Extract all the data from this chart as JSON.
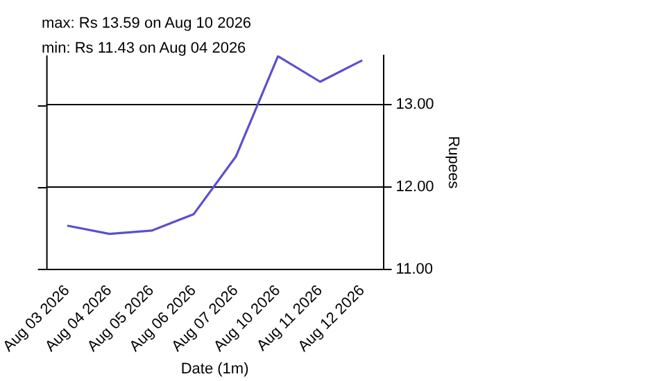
{
  "chart_data": {
    "type": "line",
    "xlabel": "Date (1m)",
    "ylabel": "Rupees",
    "annotations": [
      "max: Rs 13.59 on Aug 10 2026",
      "min: Rs 11.43 on Aug 04 2026"
    ],
    "categories": [
      "Aug 03 2026",
      "Aug 04 2026",
      "Aug 05 2026",
      "Aug 06 2026",
      "Aug 07 2026",
      "Aug 10 2026",
      "Aug 11 2026",
      "Aug 12 2026"
    ],
    "series": [
      {
        "color": "#5b4fcf",
        "values": [
          11.53,
          11.43,
          11.47,
          11.67,
          12.37,
          13.59,
          13.28,
          13.54
        ]
      }
    ],
    "ylim": [
      11,
      13.6
    ],
    "yticks": [
      {
        "value": 11,
        "label": "11.00"
      },
      {
        "value": 12,
        "label": "12.00"
      },
      {
        "value": 13,
        "label": "13.00"
      }
    ],
    "grid": "y",
    "legend": false,
    "marker": "none",
    "line_style": "solid"
  }
}
